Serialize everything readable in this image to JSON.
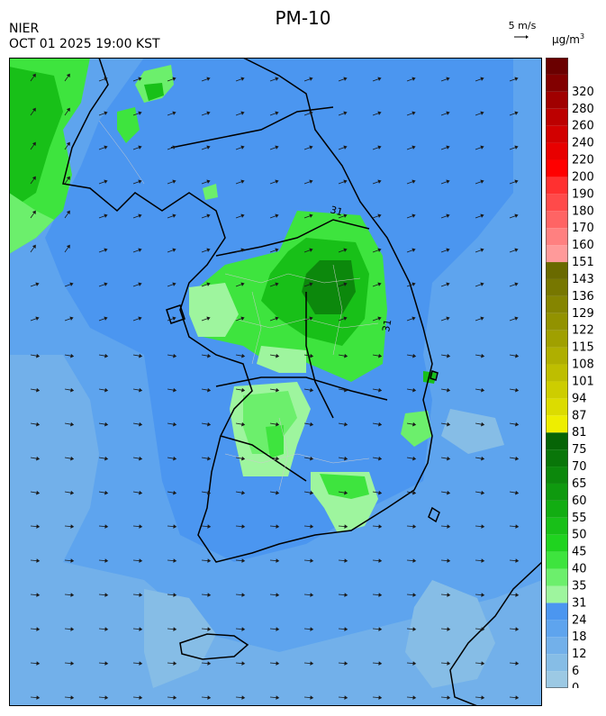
{
  "header": {
    "agency": "NIER",
    "timestamp": "OCT 01 2025 19:00 KST",
    "title": "PM-10",
    "wind_reference": "5 m/s",
    "unit_prefix": "μg/m",
    "unit_exponent": "3"
  },
  "map": {
    "contour_labels": [
      "31",
      "31"
    ]
  },
  "legend": {
    "levels": [
      {
        "label": "0",
        "color": "#9cc9e4"
      },
      {
        "label": "6",
        "color": "#86bde6"
      },
      {
        "label": "12",
        "color": "#72b0ea"
      },
      {
        "label": "18",
        "color": "#5ea4ee"
      },
      {
        "label": "24",
        "color": "#4b96f0"
      },
      {
        "label": "31",
        "color": "#9ef59e"
      },
      {
        "label": "35",
        "color": "#6cef6c"
      },
      {
        "label": "40",
        "color": "#3ee43e"
      },
      {
        "label": "45",
        "color": "#1fd31f"
      },
      {
        "label": "50",
        "color": "#18c018"
      },
      {
        "label": "55",
        "color": "#12ad12"
      },
      {
        "label": "60",
        "color": "#0f9a0f"
      },
      {
        "label": "65",
        "color": "#0c880c"
      },
      {
        "label": "70",
        "color": "#097609"
      },
      {
        "label": "75",
        "color": "#066406"
      },
      {
        "label": "81",
        "color": "#eeee00"
      },
      {
        "label": "87",
        "color": "#dcdc00"
      },
      {
        "label": "94",
        "color": "#cdcd00"
      },
      {
        "label": "101",
        "color": "#bebe00"
      },
      {
        "label": "108",
        "color": "#afaf00"
      },
      {
        "label": "115",
        "color": "#a0a000"
      },
      {
        "label": "122",
        "color": "#929200"
      },
      {
        "label": "129",
        "color": "#858500"
      },
      {
        "label": "136",
        "color": "#777700"
      },
      {
        "label": "143",
        "color": "#6a6a00"
      },
      {
        "label": "151",
        "color": "#ff9a9a"
      },
      {
        "label": "160",
        "color": "#ff8080"
      },
      {
        "label": "170",
        "color": "#ff6464"
      },
      {
        "label": "180",
        "color": "#ff4a4a"
      },
      {
        "label": "190",
        "color": "#ff3030"
      },
      {
        "label": "200",
        "color": "#ff0000"
      },
      {
        "label": "220",
        "color": "#e80000"
      },
      {
        "label": "240",
        "color": "#d20000"
      },
      {
        "label": "260",
        "color": "#bc0000"
      },
      {
        "label": "280",
        "color": "#a00000"
      },
      {
        "label": "320",
        "color": "#820000"
      }
    ],
    "top_color": "#6a0000"
  }
}
